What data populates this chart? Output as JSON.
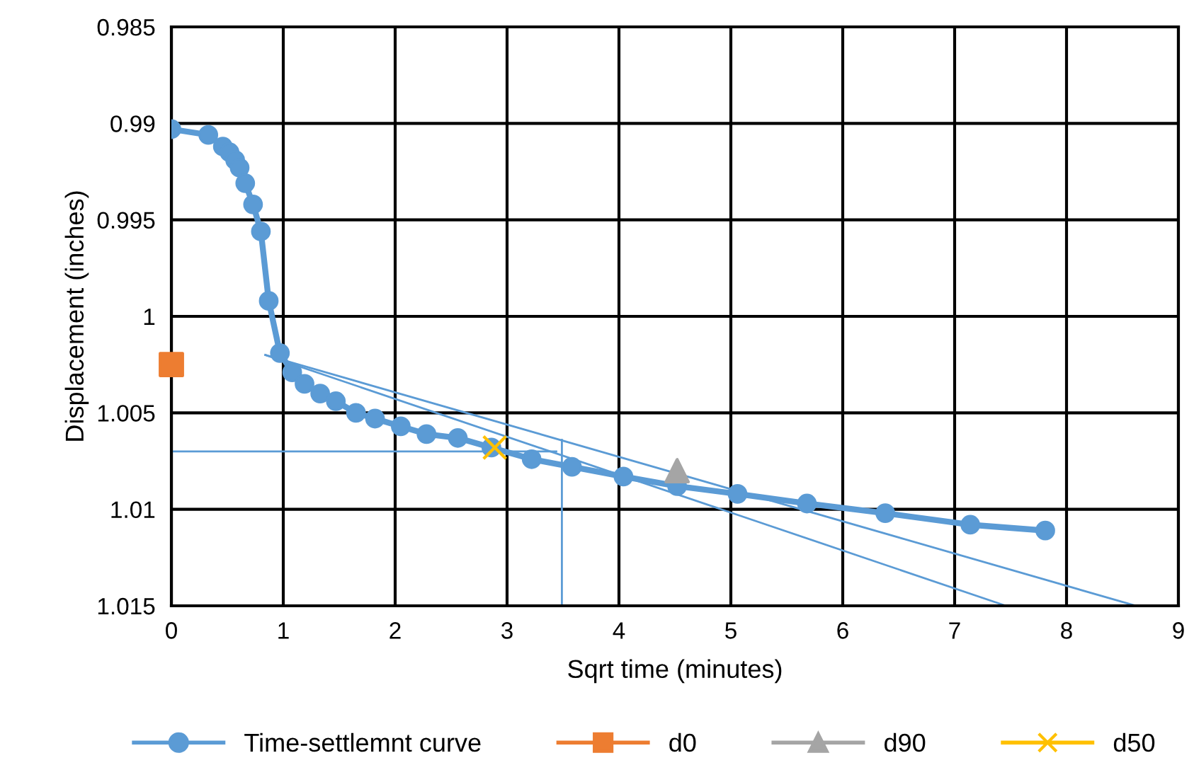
{
  "chart_data": {
    "type": "line",
    "xlabel": "Sqrt time (minutes)",
    "ylabel": "Displacement (inches)",
    "xlim": [
      0,
      9
    ],
    "xticks": [
      0,
      1,
      2,
      3,
      4,
      5,
      6,
      7,
      8,
      9
    ],
    "ylim": [
      1.015,
      0.985
    ],
    "yticks": [
      0.985,
      0.99,
      0.995,
      1,
      1.005,
      1.01,
      1.015
    ],
    "grid": true,
    "legend": "bottom",
    "series": [
      {
        "name": "Time-settlemnt curve",
        "color": "#5b9bd5",
        "marker": "circle",
        "x": [
          0,
          0.33,
          0.46,
          0.52,
          0.57,
          0.61,
          0.66,
          0.73,
          0.8,
          0.87,
          0.97,
          1.08,
          1.19,
          1.33,
          1.47,
          1.65,
          1.82,
          2.05,
          2.28,
          2.56,
          2.86,
          3.22,
          3.58,
          4.04,
          4.52,
          5.06,
          5.68,
          6.38,
          7.14,
          7.81
        ],
        "values": [
          0.9903,
          0.9906,
          0.9912,
          0.9915,
          0.9919,
          0.9923,
          0.9931,
          0.9942,
          0.9956,
          0.9992,
          1.0019,
          1.0029,
          1.0035,
          1.004,
          1.0044,
          1.005,
          1.0053,
          1.0057,
          1.0061,
          1.0063,
          1.0068,
          1.0074,
          1.0078,
          1.0083,
          1.0088,
          1.0092,
          1.0097,
          1.0102,
          1.0108,
          1.0111
        ]
      },
      {
        "name": "d0",
        "type": "scatter",
        "color": "#ed7d31",
        "marker": "square",
        "x": [
          0
        ],
        "values": [
          1.0025
        ]
      },
      {
        "name": "d90",
        "type": "scatter",
        "color": "#a5a5a5",
        "marker": "triangle",
        "x": [
          4.52
        ],
        "values": [
          1.008
        ]
      },
      {
        "name": "d50",
        "type": "scatter",
        "color": "#ffc000",
        "marker": "cross",
        "x": [
          2.89
        ],
        "values": [
          1.0068
        ]
      },
      {
        "color": "#5b9bd5",
        "marker": "none",
        "x": [
          0.84,
          7.46
        ],
        "values": [
          1.002,
          1.015
        ]
      },
      {
        "color": "#5b9bd5",
        "marker": "none",
        "x": [
          0.84,
          8.62
        ],
        "values": [
          1.002,
          1.015
        ]
      },
      {
        "color": "#5b9bd5",
        "marker": "none",
        "x": [
          0,
          3.44
        ],
        "values": [
          1.007,
          1.007
        ]
      },
      {
        "color": "#5b9bd5",
        "marker": "none",
        "x": [
          3.49,
          3.49
        ],
        "values": [
          1.0064,
          1.015
        ]
      }
    ]
  }
}
